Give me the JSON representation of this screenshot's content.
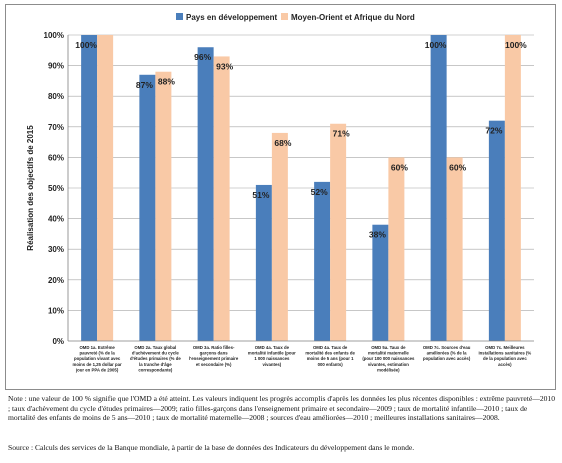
{
  "chart_data": {
    "type": "bar",
    "ylabel": "Réalisation des objectifs de 2015",
    "ylim": [
      0,
      100
    ],
    "yticks": [
      "0%",
      "10%",
      "20%",
      "30%",
      "40%",
      "50%",
      "60%",
      "70%",
      "80%",
      "90%",
      "100%"
    ],
    "legend_position": "top",
    "grid": true,
    "categories": [
      [
        "OMD 1a. Extrême",
        "pauvreté (% de la",
        "population vivant avec",
        "moins de 1,25 dollar par",
        "jour en PPA de 2005)"
      ],
      [
        "OMD 2a. Taux global",
        "d'achèvement du cycle",
        "d'études primaires (% de",
        "la tranche d'âge",
        "correspondante)"
      ],
      [
        "OMD 3a. Ratio filles-",
        "garçons dans",
        "l'enseignement primaire",
        "et secondaire (%)"
      ],
      [
        "OMD 4a. Taux de",
        "mortalité infantile (pour",
        "1 000 naissances",
        "vivantes)"
      ],
      [
        "OMD 4a. Taux de",
        "mortalité des enfants de",
        "moins de 5 ans (pour 1",
        "000 enfants)"
      ],
      [
        "OMD 5a. Taux de",
        "mortalité maternelle",
        "(pour 100 000 naissances",
        "vivantes, estimation",
        "modélisée)"
      ],
      [
        "OMD 7c. Sources d'eau",
        "améliorées (% de la",
        "population avec accès)"
      ],
      [
        "OMD 7c. Meilleures",
        "installations sanitaires (%",
        "de la population avec",
        "accès)"
      ]
    ],
    "series": [
      {
        "name": "Pays en développement",
        "color": "#4a7ebb",
        "values": [
          100,
          87,
          96,
          51,
          52,
          38,
          100,
          72
        ],
        "labels": [
          "100%",
          "87%",
          "96%",
          "51%",
          "52%",
          "38%",
          "100%",
          "72%"
        ]
      },
      {
        "name": "Moyen-Orient et Afrique du Nord",
        "color": "#f9c9a6",
        "values": [
          100,
          88,
          93,
          68,
          71,
          60,
          60,
          100
        ],
        "labels": [
          "",
          "88%",
          "93%",
          "68%",
          "71%",
          "60%",
          "60%",
          "100%"
        ]
      }
    ]
  },
  "note": "Note : une valeur de 100 % signifie que l'OMD a été atteint. Les valeurs indiquent les progrès accomplis d'après les données les plus récentes disponibles : extrême pauvreté—2010 ; taux d'achèvement du cycle d'études primaires—2009; ratio filles-garçons dans l'enseignement primaire et secondaire—2009 ; taux de mortalité infantile—2010 ; taux de mortalité des enfants de moins de 5 ans—2010 ; taux de mortalité maternelle—2008 ; sources d'eau améliorées—2010 ; meilleures installations sanitaires—2008.",
  "source": "Source : Calculs des services de la Banque mondiale, à partir de la base de données des Indicateurs du développement dans le monde."
}
